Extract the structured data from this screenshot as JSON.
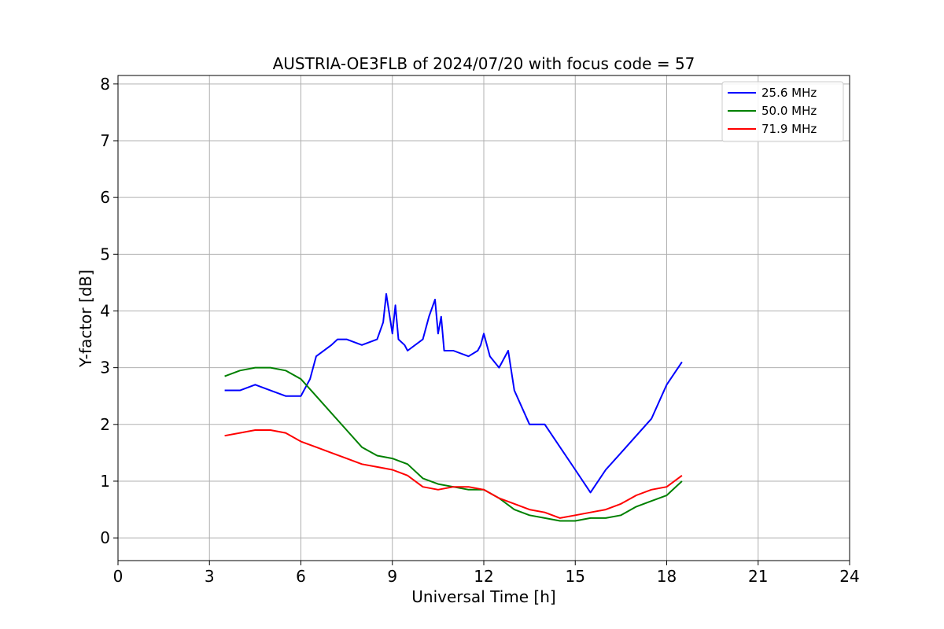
{
  "chart_data": {
    "type": "line",
    "title": "AUSTRIA-OE3FLB of 2024/07/20 with focus code = 57",
    "xlabel": "Universal Time [h]",
    "ylabel": "Y-factor [dB]",
    "xlim": [
      0,
      24
    ],
    "ylim": [
      -0.4,
      8.15
    ],
    "xticks": [
      "0",
      "3",
      "6",
      "9",
      "12",
      "15",
      "18",
      "21",
      "24"
    ],
    "yticks": [
      "0",
      "1",
      "2",
      "3",
      "4",
      "5",
      "6",
      "7",
      "8"
    ],
    "grid": true,
    "legend_position": "top-right",
    "series": [
      {
        "name": "25.6 MHz",
        "color": "#0000ff",
        "x": [
          3.5,
          4.0,
          4.5,
          5.0,
          5.5,
          6.0,
          6.3,
          6.5,
          7.0,
          7.2,
          7.5,
          8.0,
          8.5,
          8.7,
          8.8,
          9.0,
          9.1,
          9.2,
          9.4,
          9.5,
          10.0,
          10.2,
          10.4,
          10.5,
          10.6,
          10.7,
          11.0,
          11.5,
          11.8,
          11.9,
          12.0,
          12.2,
          12.5,
          12.8,
          13.0,
          13.5,
          14.0,
          14.5,
          15.0,
          15.5,
          16.0,
          16.5,
          17.0,
          17.5,
          18.0,
          18.5
        ],
        "values": [
          2.6,
          2.6,
          2.7,
          2.6,
          2.5,
          2.5,
          2.8,
          3.2,
          3.4,
          3.5,
          3.5,
          3.4,
          3.5,
          3.8,
          4.3,
          3.6,
          4.1,
          3.5,
          3.4,
          3.3,
          3.5,
          3.9,
          4.2,
          3.6,
          3.9,
          3.3,
          3.3,
          3.2,
          3.3,
          3.4,
          3.6,
          3.2,
          3.0,
          3.3,
          2.6,
          2.0,
          2.0,
          1.6,
          1.2,
          0.8,
          1.2,
          1.5,
          1.8,
          2.1,
          2.7,
          3.1
        ]
      },
      {
        "name": "50.0 MHz",
        "color": "#008000",
        "x": [
          3.5,
          4.0,
          4.5,
          5.0,
          5.5,
          6.0,
          6.5,
          7.0,
          7.5,
          8.0,
          8.5,
          9.0,
          9.5,
          10.0,
          10.5,
          11.0,
          11.5,
          12.0,
          12.5,
          13.0,
          13.5,
          14.0,
          14.5,
          15.0,
          15.5,
          16.0,
          16.5,
          17.0,
          17.5,
          18.0,
          18.5
        ],
        "values": [
          2.85,
          2.95,
          3.0,
          3.0,
          2.95,
          2.8,
          2.5,
          2.2,
          1.9,
          1.6,
          1.45,
          1.4,
          1.3,
          1.05,
          0.95,
          0.9,
          0.85,
          0.85,
          0.7,
          0.5,
          0.4,
          0.35,
          0.3,
          0.3,
          0.35,
          0.35,
          0.4,
          0.55,
          0.65,
          0.75,
          1.0
        ]
      },
      {
        "name": "71.9 MHz",
        "color": "#ff0000",
        "x": [
          3.5,
          4.0,
          4.5,
          5.0,
          5.5,
          6.0,
          6.5,
          7.0,
          7.5,
          8.0,
          8.5,
          9.0,
          9.5,
          10.0,
          10.5,
          11.0,
          11.5,
          12.0,
          12.5,
          13.0,
          13.5,
          14.0,
          14.5,
          15.0,
          15.5,
          16.0,
          16.5,
          17.0,
          17.5,
          18.0,
          18.5
        ],
        "values": [
          1.8,
          1.85,
          1.9,
          1.9,
          1.85,
          1.7,
          1.6,
          1.5,
          1.4,
          1.3,
          1.25,
          1.2,
          1.1,
          0.9,
          0.85,
          0.9,
          0.9,
          0.85,
          0.7,
          0.6,
          0.5,
          0.45,
          0.35,
          0.4,
          0.45,
          0.5,
          0.6,
          0.75,
          0.85,
          0.9,
          1.1
        ]
      }
    ]
  }
}
